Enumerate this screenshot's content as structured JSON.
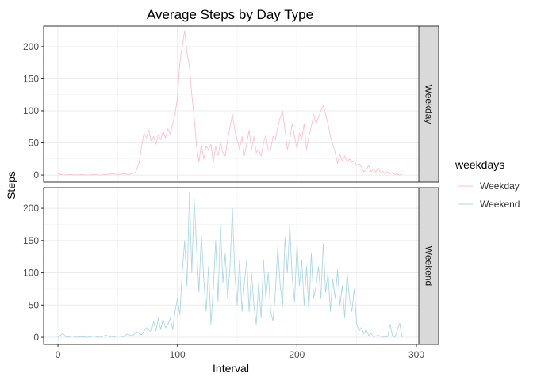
{
  "chart_data": {
    "type": "line",
    "title": "Average Steps by Day Type",
    "xlabel": "Interval",
    "ylabel": "Steps",
    "xlim": [
      -12,
      302
    ],
    "ylim": [
      -11,
      232
    ],
    "xticks": [
      0,
      100,
      200,
      300
    ],
    "yticks": [
      0,
      50,
      100,
      150,
      200
    ],
    "grid": true,
    "facet_by": "weekdays",
    "legend": {
      "title": "weekdays",
      "position": "right",
      "entries": [
        "Weekday",
        "Weekend"
      ]
    },
    "series": [
      {
        "name": "Weekday",
        "color": "#FFC0CB",
        "points": [
          [
            0,
            2
          ],
          [
            5,
            0
          ],
          [
            10,
            1
          ],
          [
            15,
            0
          ],
          [
            20,
            1
          ],
          [
            25,
            0
          ],
          [
            30,
            1
          ],
          [
            35,
            0
          ],
          [
            40,
            1
          ],
          [
            45,
            2
          ],
          [
            50,
            1
          ],
          [
            55,
            2
          ],
          [
            60,
            1
          ],
          [
            65,
            4
          ],
          [
            68,
            20
          ],
          [
            70,
            45
          ],
          [
            72,
            65
          ],
          [
            74,
            58
          ],
          [
            76,
            70
          ],
          [
            78,
            52
          ],
          [
            80,
            60
          ],
          [
            82,
            48
          ],
          [
            84,
            62
          ],
          [
            86,
            55
          ],
          [
            88,
            68
          ],
          [
            90,
            58
          ],
          [
            92,
            72
          ],
          [
            94,
            64
          ],
          [
            96,
            80
          ],
          [
            98,
            95
          ],
          [
            100,
            120
          ],
          [
            102,
            175
          ],
          [
            104,
            200
          ],
          [
            106,
            225
          ],
          [
            108,
            190
          ],
          [
            110,
            170
          ],
          [
            112,
            125
          ],
          [
            114,
            90
          ],
          [
            116,
            45
          ],
          [
            118,
            20
          ],
          [
            120,
            48
          ],
          [
            122,
            25
          ],
          [
            124,
            45
          ],
          [
            126,
            40
          ],
          [
            128,
            48
          ],
          [
            130,
            20
          ],
          [
            132,
            45
          ],
          [
            134,
            30
          ],
          [
            136,
            50
          ],
          [
            138,
            35
          ],
          [
            140,
            30
          ],
          [
            142,
            55
          ],
          [
            144,
            75
          ],
          [
            146,
            95
          ],
          [
            148,
            70
          ],
          [
            150,
            55
          ],
          [
            152,
            40
          ],
          [
            154,
            60
          ],
          [
            156,
            30
          ],
          [
            158,
            50
          ],
          [
            160,
            70
          ],
          [
            162,
            40
          ],
          [
            164,
            60
          ],
          [
            166,
            35
          ],
          [
            168,
            40
          ],
          [
            170,
            30
          ],
          [
            172,
            50
          ],
          [
            174,
            62
          ],
          [
            176,
            38
          ],
          [
            178,
            40
          ],
          [
            180,
            60
          ],
          [
            182,
            55
          ],
          [
            184,
            75
          ],
          [
            186,
            90
          ],
          [
            188,
            100
          ],
          [
            190,
            70
          ],
          [
            192,
            40
          ],
          [
            194,
            55
          ],
          [
            196,
            80
          ],
          [
            198,
            60
          ],
          [
            200,
            40
          ],
          [
            202,
            65
          ],
          [
            204,
            55
          ],
          [
            206,
            80
          ],
          [
            208,
            40
          ],
          [
            210,
            60
          ],
          [
            212,
            75
          ],
          [
            214,
            95
          ],
          [
            216,
            80
          ],
          [
            218,
            90
          ],
          [
            220,
            100
          ],
          [
            222,
            108
          ],
          [
            224,
            95
          ],
          [
            226,
            80
          ],
          [
            228,
            60
          ],
          [
            230,
            48
          ],
          [
            232,
            35
          ],
          [
            234,
            18
          ],
          [
            236,
            32
          ],
          [
            238,
            22
          ],
          [
            240,
            30
          ],
          [
            242,
            20
          ],
          [
            244,
            25
          ],
          [
            246,
            20
          ],
          [
            248,
            22
          ],
          [
            250,
            15
          ],
          [
            252,
            18
          ],
          [
            254,
            12
          ],
          [
            256,
            5
          ],
          [
            258,
            8
          ],
          [
            260,
            15
          ],
          [
            262,
            5
          ],
          [
            264,
            10
          ],
          [
            266,
            4
          ],
          [
            268,
            12
          ],
          [
            270,
            3
          ],
          [
            272,
            6
          ],
          [
            274,
            2
          ],
          [
            276,
            5
          ],
          [
            278,
            2
          ],
          [
            280,
            4
          ],
          [
            282,
            1
          ],
          [
            284,
            2
          ],
          [
            286,
            0
          ],
          [
            288,
            1
          ]
        ]
      },
      {
        "name": "Weekend",
        "color": "#ADD8E6",
        "points": [
          [
            0,
            0
          ],
          [
            4,
            6
          ],
          [
            7,
            0
          ],
          [
            12,
            2
          ],
          [
            15,
            0
          ],
          [
            20,
            1
          ],
          [
            25,
            0
          ],
          [
            30,
            2
          ],
          [
            35,
            0
          ],
          [
            40,
            3
          ],
          [
            45,
            0
          ],
          [
            50,
            2
          ],
          [
            55,
            1
          ],
          [
            58,
            5
          ],
          [
            62,
            2
          ],
          [
            66,
            8
          ],
          [
            70,
            4
          ],
          [
            74,
            15
          ],
          [
            78,
            8
          ],
          [
            80,
            25
          ],
          [
            82,
            10
          ],
          [
            84,
            30
          ],
          [
            86,
            12
          ],
          [
            88,
            28
          ],
          [
            90,
            15
          ],
          [
            92,
            20
          ],
          [
            94,
            30
          ],
          [
            96,
            12
          ],
          [
            98,
            40
          ],
          [
            100,
            60
          ],
          [
            102,
            35
          ],
          [
            104,
            100
          ],
          [
            106,
            150
          ],
          [
            108,
            80
          ],
          [
            110,
            225
          ],
          [
            112,
            100
          ],
          [
            114,
            215
          ],
          [
            116,
            140
          ],
          [
            118,
            70
          ],
          [
            120,
            160
          ],
          [
            122,
            90
          ],
          [
            124,
            40
          ],
          [
            126,
            110
          ],
          [
            128,
            20
          ],
          [
            130,
            75
          ],
          [
            132,
            150
          ],
          [
            134,
            55
          ],
          [
            136,
            175
          ],
          [
            138,
            85
          ],
          [
            140,
            130
          ],
          [
            142,
            60
          ],
          [
            144,
            110
          ],
          [
            146,
            200
          ],
          [
            148,
            100
          ],
          [
            150,
            50
          ],
          [
            152,
            120
          ],
          [
            154,
            40
          ],
          [
            156,
            85
          ],
          [
            158,
            120
          ],
          [
            160,
            40
          ],
          [
            162,
            100
          ],
          [
            164,
            50
          ],
          [
            166,
            20
          ],
          [
            168,
            85
          ],
          [
            170,
            30
          ],
          [
            172,
            120
          ],
          [
            174,
            60
          ],
          [
            176,
            100
          ],
          [
            178,
            40
          ],
          [
            180,
            25
          ],
          [
            182,
            70
          ],
          [
            184,
            140
          ],
          [
            186,
            80
          ],
          [
            188,
            50
          ],
          [
            190,
            155
          ],
          [
            192,
            100
          ],
          [
            194,
            175
          ],
          [
            196,
            95
          ],
          [
            198,
            55
          ],
          [
            200,
            145
          ],
          [
            202,
            80
          ],
          [
            204,
            120
          ],
          [
            206,
            50
          ],
          [
            208,
            110
          ],
          [
            210,
            40
          ],
          [
            212,
            130
          ],
          [
            214,
            60
          ],
          [
            216,
            80
          ],
          [
            218,
            110
          ],
          [
            220,
            60
          ],
          [
            222,
            145
          ],
          [
            224,
            70
          ],
          [
            226,
            100
          ],
          [
            228,
            40
          ],
          [
            230,
            90
          ],
          [
            232,
            60
          ],
          [
            234,
            105
          ],
          [
            236,
            50
          ],
          [
            238,
            80
          ],
          [
            240,
            30
          ],
          [
            242,
            100
          ],
          [
            244,
            60
          ],
          [
            246,
            40
          ],
          [
            248,
            75
          ],
          [
            250,
            20
          ],
          [
            252,
            10
          ],
          [
            254,
            15
          ],
          [
            256,
            5
          ],
          [
            258,
            12
          ],
          [
            260,
            3
          ],
          [
            262,
            6
          ],
          [
            264,
            1
          ],
          [
            268,
            3
          ],
          [
            272,
            0
          ],
          [
            276,
            1
          ],
          [
            278,
            20
          ],
          [
            280,
            2
          ],
          [
            282,
            0
          ],
          [
            286,
            22
          ],
          [
            288,
            0
          ]
        ]
      }
    ]
  }
}
